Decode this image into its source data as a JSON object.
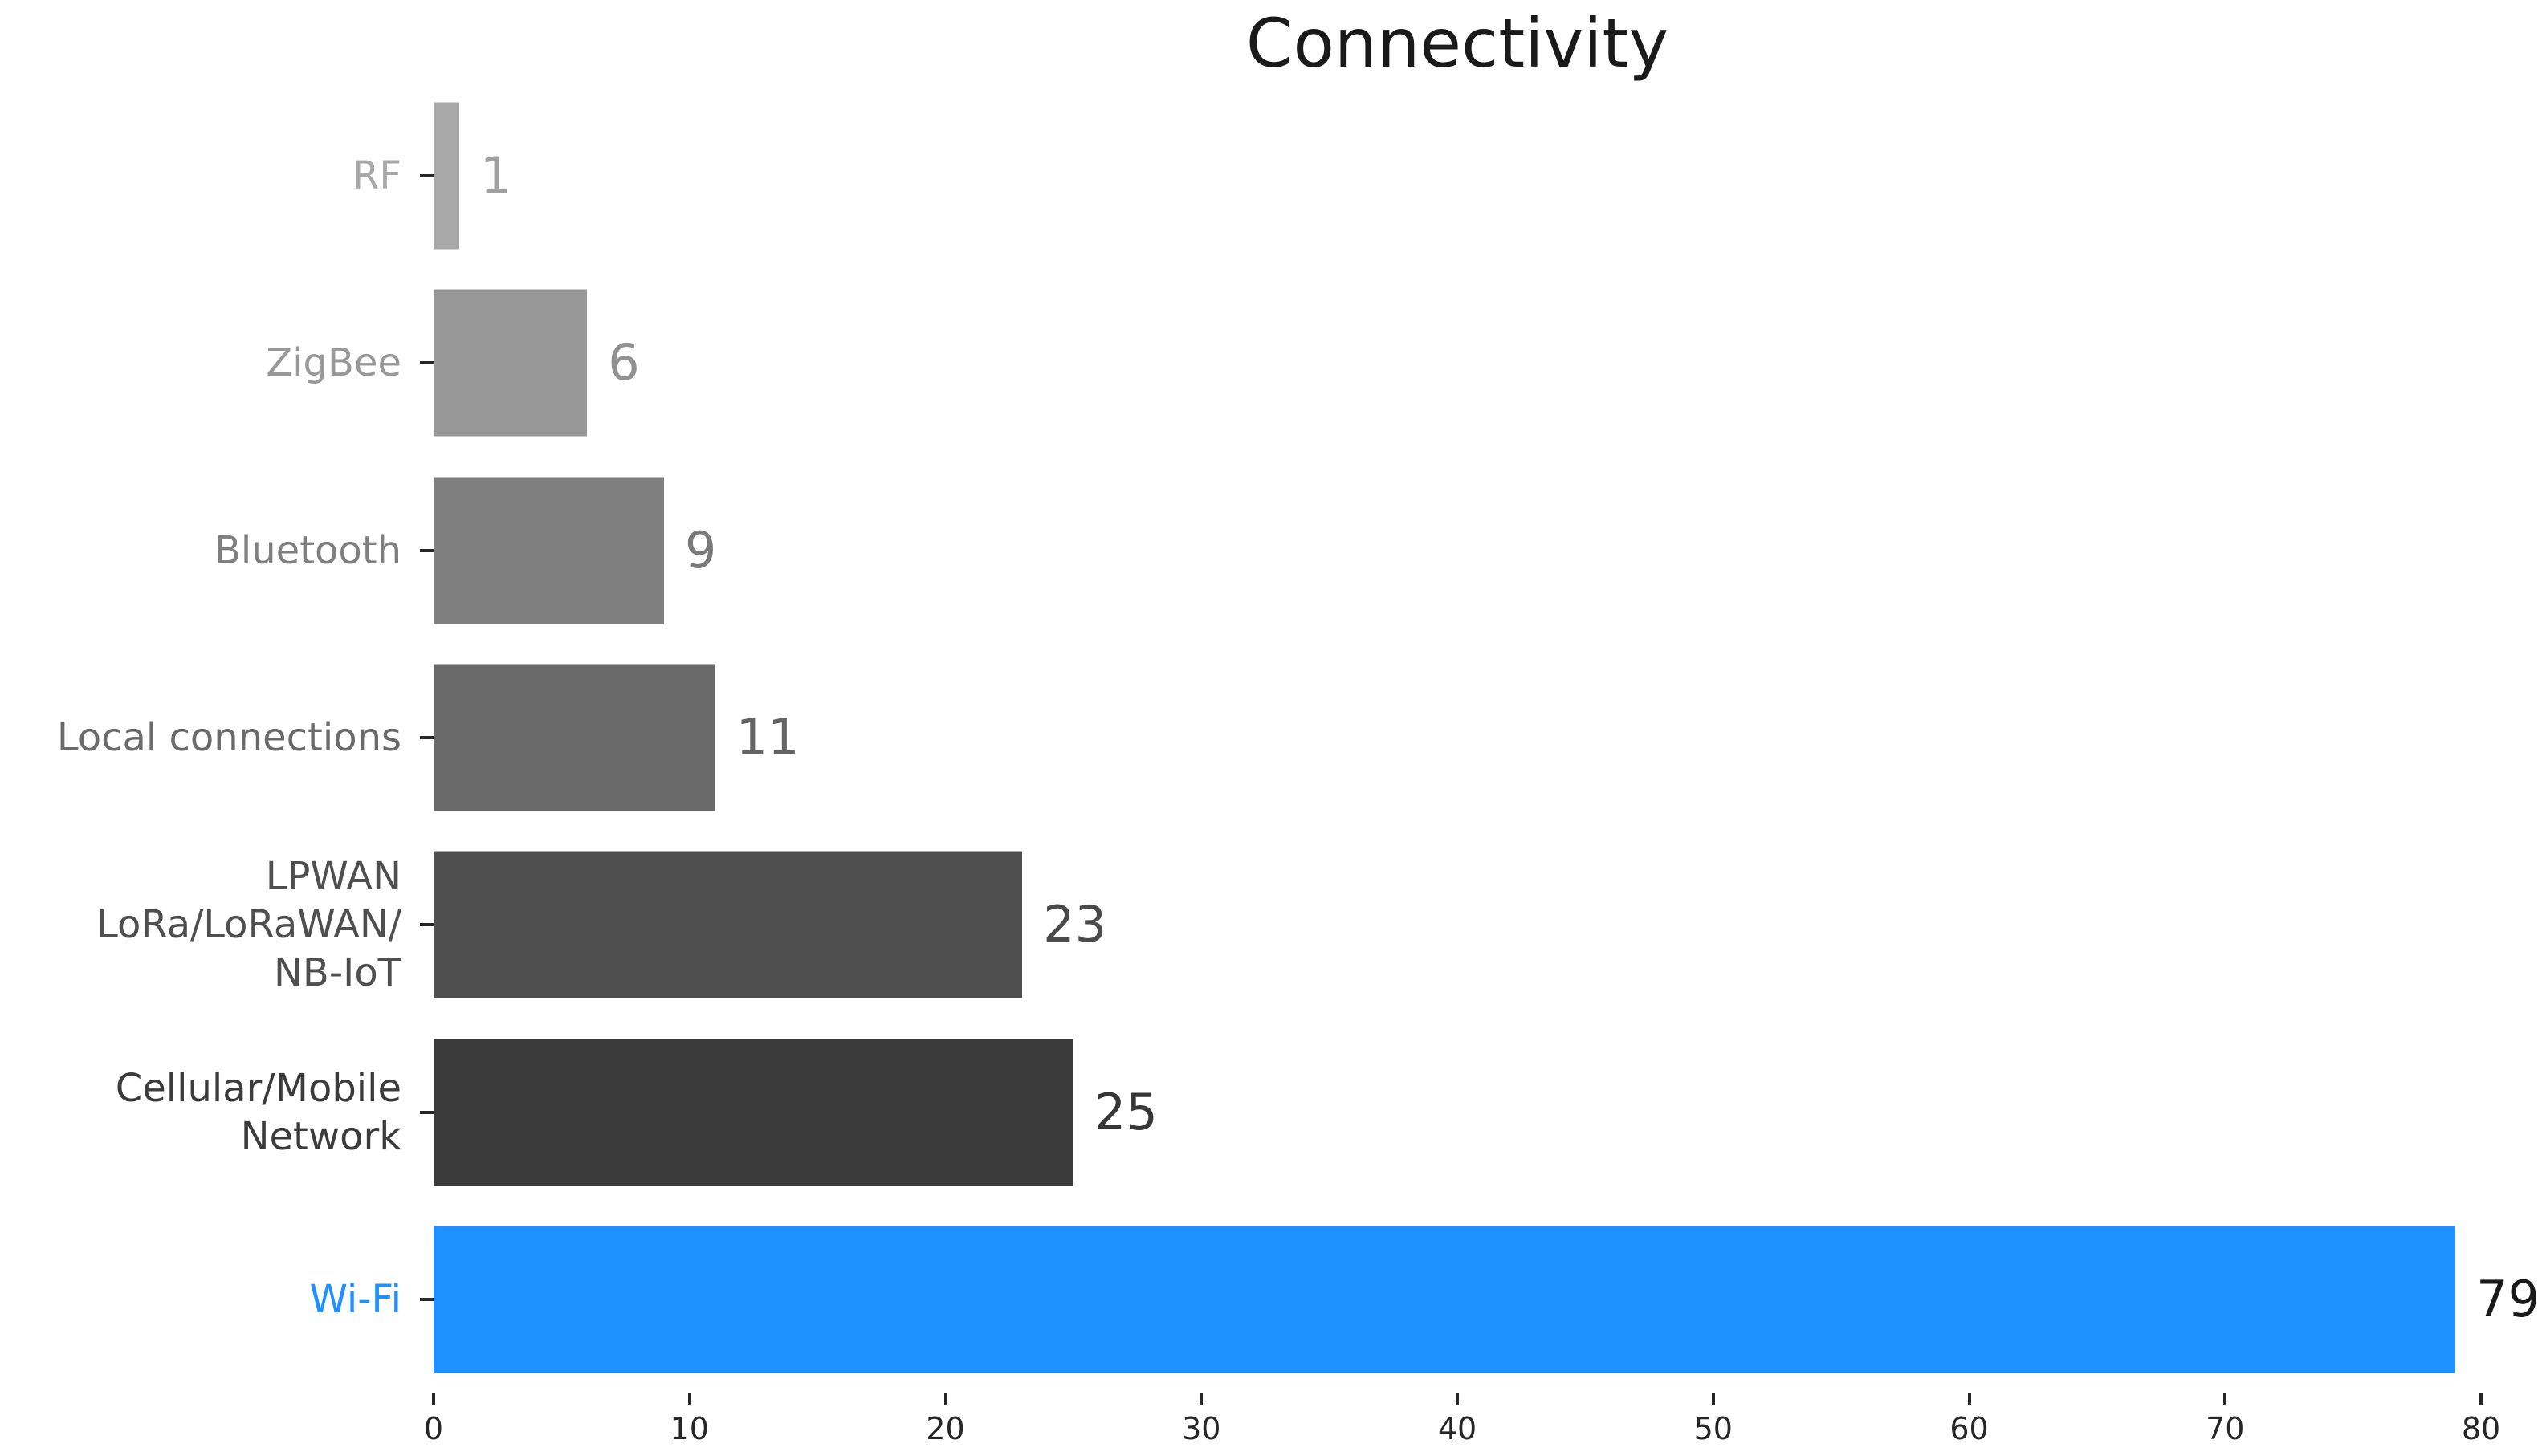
{
  "chart_data": {
    "type": "bar",
    "orientation": "horizontal",
    "title": "Connectivity",
    "xlabel": "",
    "ylabel": "",
    "xlim": [
      0,
      80
    ],
    "x_ticks": [
      0,
      10,
      20,
      30,
      40,
      50,
      60,
      70,
      80
    ],
    "grid": false,
    "legend": false,
    "background_color": "#ffffff",
    "title_color": "#1a1a1a",
    "axis_tick_color": "#262626",
    "categories_top_to_bottom": [
      "RF",
      "ZigBee",
      "Bluetooth",
      "Local connections",
      "LPWAN\nLoRa/LoRaWAN/\nNB-IoT",
      "Cellular/Mobile\nNetwork",
      "Wi-Fi"
    ],
    "values": [
      1,
      6,
      9,
      11,
      23,
      25,
      79
    ],
    "bar_colors": [
      "#a8a8a8",
      "#989898",
      "#7f7f7f",
      "#6a6a6a",
      "#4f4f4f",
      "#3b3b3b",
      "#1e90ff"
    ],
    "category_label_colors": [
      "#a8a8a8",
      "#989898",
      "#7f7f7f",
      "#6a6a6a",
      "#4f4f4f",
      "#3b3b3b",
      "#1e90ff"
    ],
    "value_label_colors": [
      "#a0a0a0",
      "#919191",
      "#7a7a7a",
      "#646464",
      "#4a4a4a",
      "#373737",
      "#1a1a1a"
    ]
  }
}
